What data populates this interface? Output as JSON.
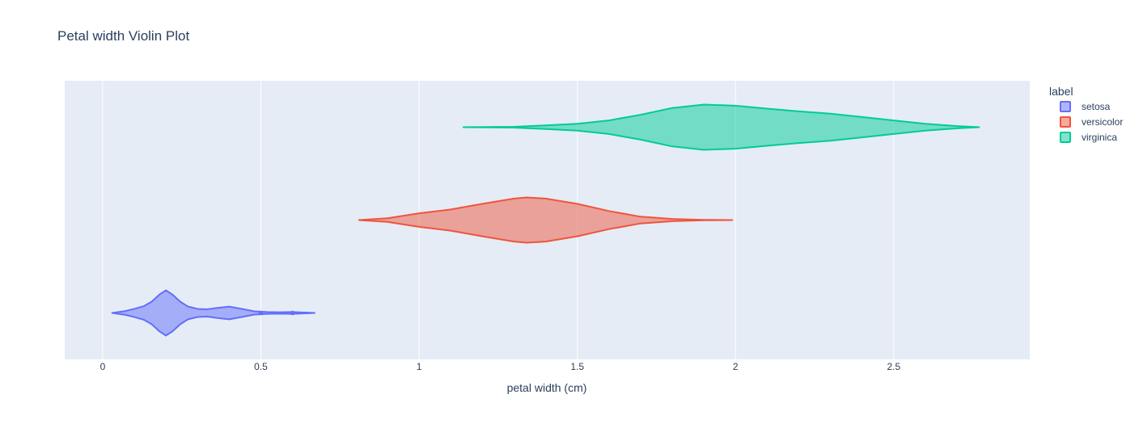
{
  "chart_data": {
    "type": "violin",
    "orientation": "horizontal",
    "title": "Petal width Violin Plot",
    "xlabel": "petal width (cm)",
    "ylabel": "",
    "xlim": [
      -0.12,
      2.93
    ],
    "x_ticks": [
      0,
      0.5,
      1,
      1.5,
      2,
      2.5
    ],
    "x_tick_labels": [
      "0",
      "0.5",
      "1",
      "1.5",
      "2",
      "2.5"
    ],
    "grid": true,
    "plot_bg": "#e5ecf6",
    "legend": {
      "title": "label",
      "position": "right"
    },
    "series": [
      {
        "name": "setosa",
        "color": "#636efa",
        "range": [
          0.03,
          0.67
        ],
        "density": [
          [
            0.03,
            0.0
          ],
          [
            0.07,
            0.08
          ],
          [
            0.1,
            0.18
          ],
          [
            0.13,
            0.3
          ],
          [
            0.155,
            0.5
          ],
          [
            0.18,
            0.82
          ],
          [
            0.2,
            1.0
          ],
          [
            0.22,
            0.82
          ],
          [
            0.245,
            0.5
          ],
          [
            0.27,
            0.28
          ],
          [
            0.3,
            0.18
          ],
          [
            0.33,
            0.16
          ],
          [
            0.36,
            0.22
          ],
          [
            0.4,
            0.28
          ],
          [
            0.44,
            0.18
          ],
          [
            0.48,
            0.07
          ],
          [
            0.52,
            0.04
          ],
          [
            0.56,
            0.03
          ],
          [
            0.6,
            0.04
          ],
          [
            0.64,
            0.02
          ],
          [
            0.67,
            0.0
          ]
        ],
        "outliers": [
          0.5,
          0.6
        ]
      },
      {
        "name": "versicolor",
        "color": "#ef553b",
        "range": [
          0.81,
          1.99
        ],
        "density": [
          [
            0.81,
            0.0
          ],
          [
            0.9,
            0.08
          ],
          [
            1.0,
            0.3
          ],
          [
            1.1,
            0.47
          ],
          [
            1.2,
            0.72
          ],
          [
            1.3,
            0.95
          ],
          [
            1.34,
            1.0
          ],
          [
            1.4,
            0.95
          ],
          [
            1.5,
            0.72
          ],
          [
            1.6,
            0.4
          ],
          [
            1.7,
            0.15
          ],
          [
            1.8,
            0.05
          ],
          [
            1.9,
            0.01
          ],
          [
            1.99,
            0.0
          ]
        ],
        "outliers": []
      },
      {
        "name": "virginica",
        "color": "#00cc96",
        "range": [
          1.14,
          2.77
        ],
        "density": [
          [
            1.14,
            0.0
          ],
          [
            1.3,
            0.02
          ],
          [
            1.4,
            0.08
          ],
          [
            1.5,
            0.15
          ],
          [
            1.6,
            0.3
          ],
          [
            1.7,
            0.55
          ],
          [
            1.8,
            0.85
          ],
          [
            1.9,
            1.0
          ],
          [
            2.0,
            0.95
          ],
          [
            2.1,
            0.82
          ],
          [
            2.2,
            0.7
          ],
          [
            2.3,
            0.6
          ],
          [
            2.4,
            0.45
          ],
          [
            2.5,
            0.3
          ],
          [
            2.6,
            0.15
          ],
          [
            2.7,
            0.05
          ],
          [
            2.77,
            0.0
          ]
        ],
        "outliers": []
      }
    ]
  }
}
